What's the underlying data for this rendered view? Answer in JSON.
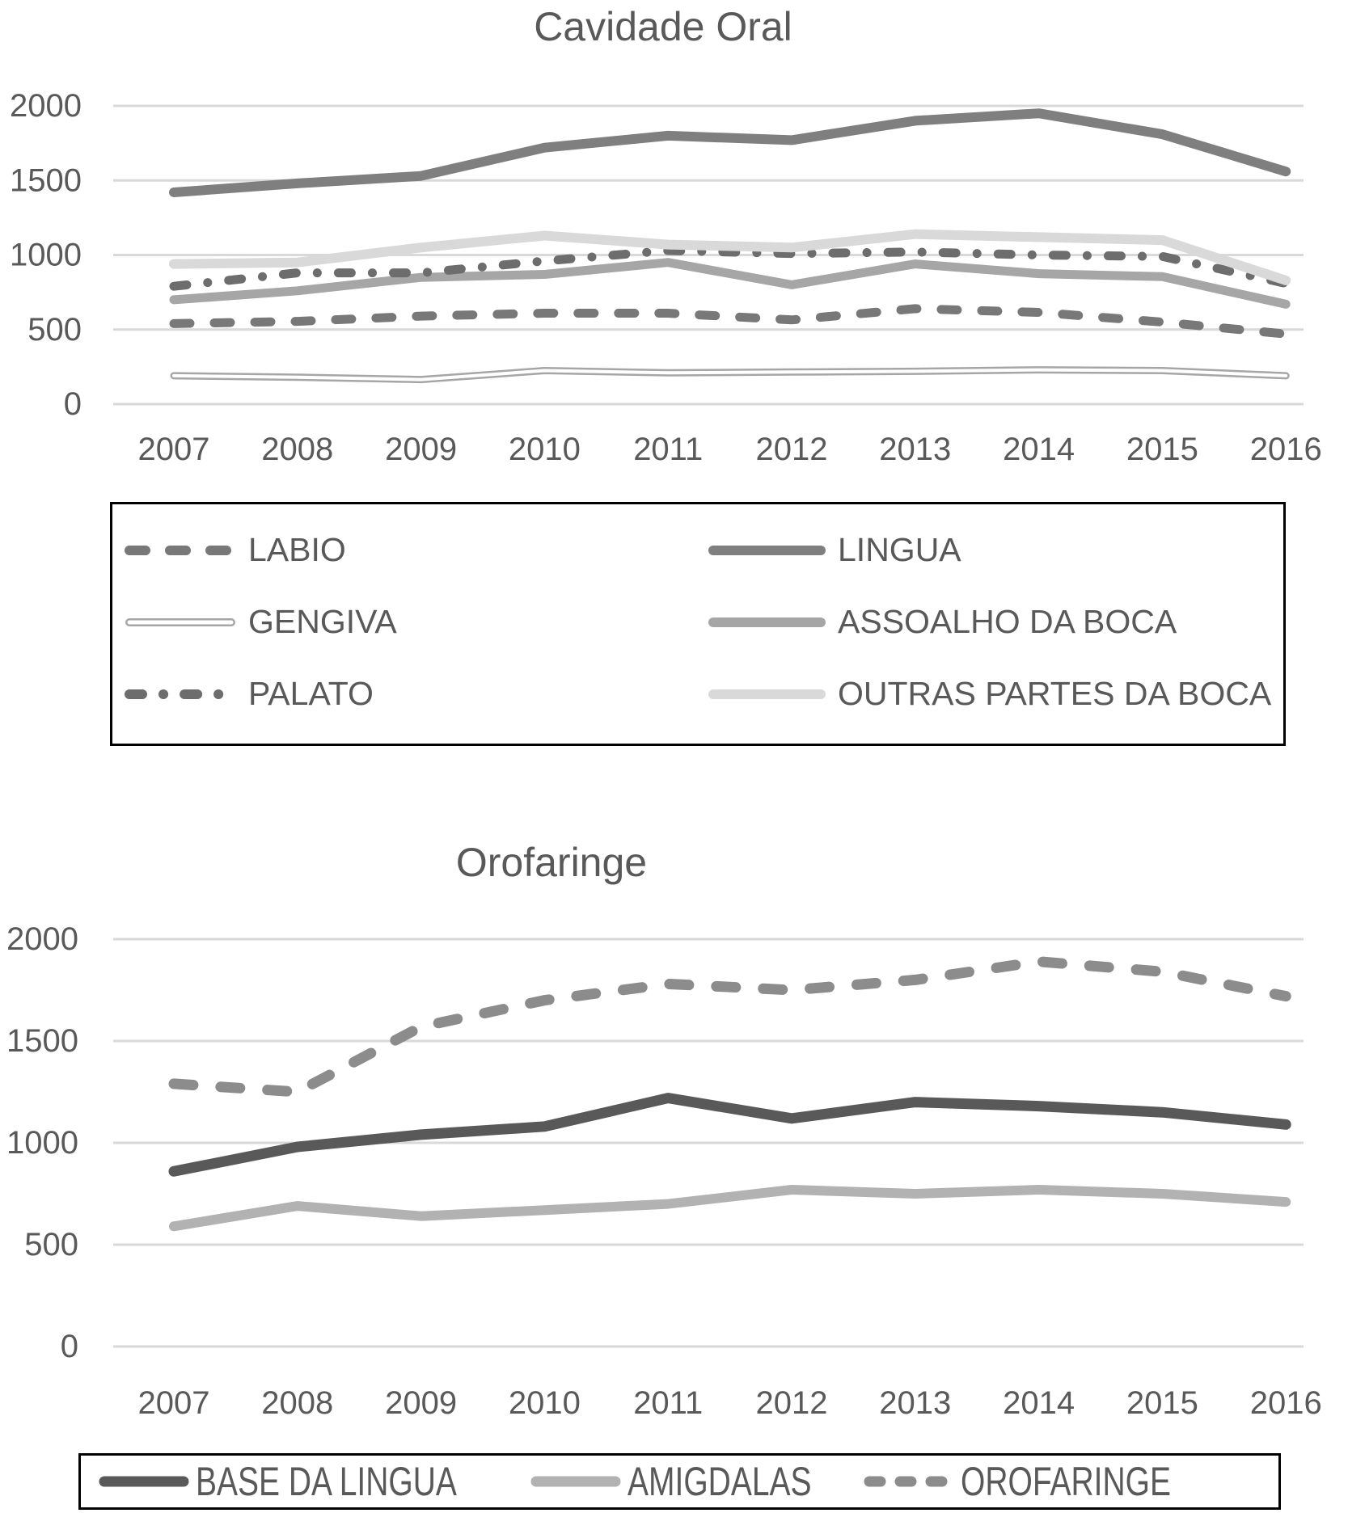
{
  "charts": [
    {
      "type": "line",
      "title": "Cavidade Oral",
      "categories": [
        "2007",
        "2008",
        "2009",
        "2010",
        "2011",
        "2012",
        "2013",
        "2014",
        "2015",
        "2016"
      ],
      "ylim": [
        0,
        2000
      ],
      "yticks": [
        0,
        500,
        1000,
        1500,
        2000
      ],
      "grid": true,
      "legend_position": "bottom-box-2-columns",
      "gridline_color": "#d9d9d9",
      "text_color": "#595959",
      "series": [
        {
          "name": "LABIO",
          "line_style": "dashed",
          "color": "#787878",
          "values": [
            540,
            555,
            590,
            610,
            610,
            565,
            640,
            615,
            550,
            470
          ]
        },
        {
          "name": "LINGUA",
          "line_style": "solid",
          "color": "#7f7f7f",
          "values": [
            1420,
            1480,
            1530,
            1720,
            1800,
            1770,
            1900,
            1950,
            1810,
            1560
          ]
        },
        {
          "name": "GENGIVA",
          "line_style": "outlined",
          "color": "#a6a6a6",
          "values": [
            190,
            180,
            165,
            225,
            210,
            215,
            220,
            230,
            225,
            190
          ]
        },
        {
          "name": "ASSOALHO DA BOCA",
          "line_style": "solid",
          "color": "#a6a6a6",
          "values": [
            700,
            760,
            850,
            870,
            950,
            800,
            940,
            875,
            855,
            670
          ]
        },
        {
          "name": "PALATO",
          "line_style": "dash-dot",
          "color": "#6d6d6d",
          "values": [
            790,
            880,
            880,
            960,
            1030,
            1010,
            1020,
            1000,
            990,
            810
          ]
        },
        {
          "name": "OUTRAS PARTES DA BOCA",
          "line_style": "solid",
          "color": "#d9d9d9",
          "values": [
            940,
            950,
            1050,
            1130,
            1070,
            1050,
            1140,
            1120,
            1100,
            830
          ]
        }
      ]
    },
    {
      "type": "line",
      "title": "Orofaringe",
      "categories": [
        "2007",
        "2008",
        "2009",
        "2010",
        "2011",
        "2012",
        "2013",
        "2014",
        "2015",
        "2016"
      ],
      "ylim": [
        0,
        2000
      ],
      "yticks": [
        0,
        500,
        1000,
        1500,
        2000
      ],
      "grid": true,
      "legend_position": "bottom-box-1-row",
      "gridline_color": "#d9d9d9",
      "text_color": "#595959",
      "series": [
        {
          "name": "BASE DA LINGUA",
          "line_style": "solid",
          "color": "#595959",
          "values": [
            860,
            980,
            1040,
            1080,
            1220,
            1120,
            1200,
            1180,
            1150,
            1090
          ]
        },
        {
          "name": "AMIGDALAS",
          "line_style": "solid",
          "color": "#b2b2b2",
          "values": [
            590,
            690,
            640,
            670,
            700,
            770,
            750,
            770,
            750,
            710
          ]
        },
        {
          "name": "OROFARINGE",
          "line_style": "dashed",
          "color": "#8c8c8c",
          "values": [
            1290,
            1250,
            1570,
            1700,
            1780,
            1750,
            1800,
            1890,
            1840,
            1720
          ]
        }
      ]
    }
  ]
}
